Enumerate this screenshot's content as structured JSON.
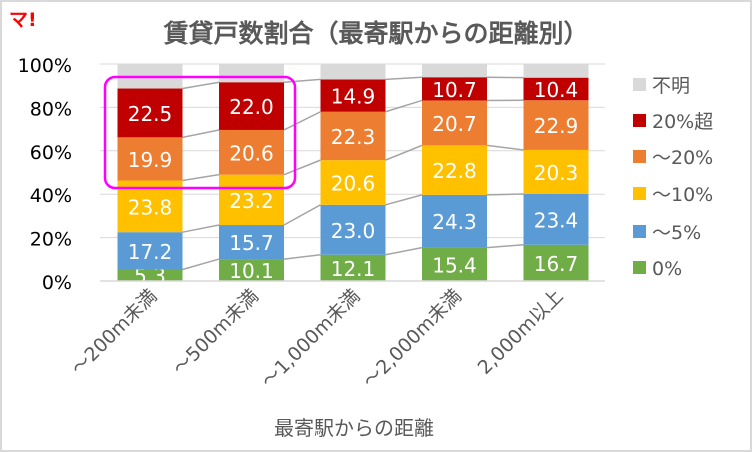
{
  "logo_text": "マ!",
  "chart_data": {
    "type": "bar",
    "stacked": true,
    "title": "賃貸戸数割合（最寄駅からの距離別）",
    "xlabel": "最寄駅からの距離",
    "ylabel": "",
    "ylim": [
      0,
      100
    ],
    "yticks": [
      "0%",
      "20%",
      "40%",
      "60%",
      "80%",
      "100%"
    ],
    "grid": true,
    "legend_position": "right",
    "categories": [
      "～200m未満",
      "～500m未満",
      "～1,000m未満",
      "～2,000m未満",
      "2,000m以上"
    ],
    "series": [
      {
        "name": "0%",
        "color": "#70ad47",
        "values": [
          5.3,
          10.1,
          12.1,
          15.4,
          16.7
        ]
      },
      {
        "name": "～5%",
        "color": "#5b9bd5",
        "values": [
          17.2,
          15.7,
          23.0,
          24.3,
          23.4
        ]
      },
      {
        "name": "～10%",
        "color": "#ffc000",
        "values": [
          23.8,
          23.2,
          20.6,
          22.8,
          20.3
        ]
      },
      {
        "name": "～20%",
        "color": "#ed7d31",
        "values": [
          19.9,
          20.6,
          22.3,
          20.7,
          22.9
        ]
      },
      {
        "name": "20%超",
        "color": "#c00000",
        "values": [
          22.5,
          22.0,
          14.9,
          10.7,
          10.4
        ]
      },
      {
        "name": "不明",
        "color": "#d9d9d9",
        "values": [
          11.3,
          8.4,
          7.1,
          6.1,
          6.3
        ],
        "labels_shown": false
      }
    ],
    "series_lines": true,
    "highlight": {
      "categories": [
        "～200m未満",
        "～500m未満"
      ],
      "series": [
        "～20%",
        "20%超"
      ],
      "color": "#ff00ff"
    }
  }
}
